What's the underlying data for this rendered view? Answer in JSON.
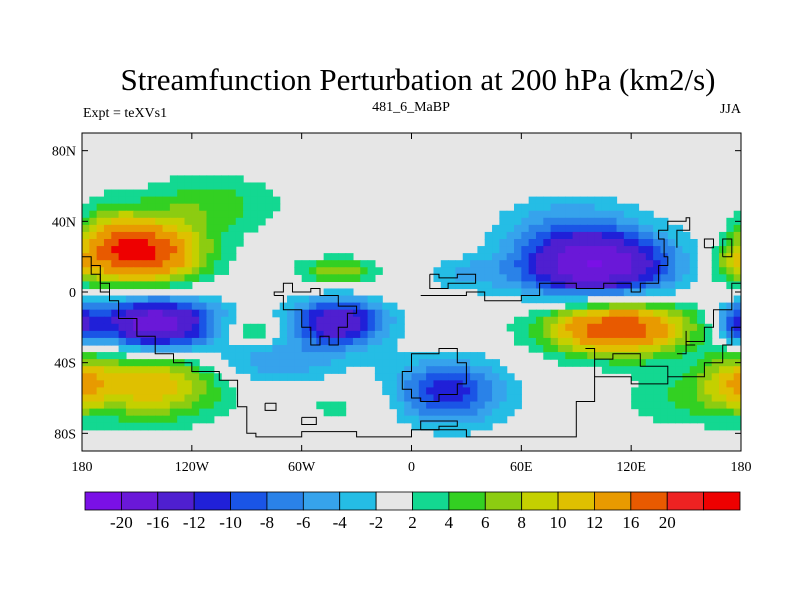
{
  "chart_data": {
    "type": "heatmap",
    "title": "Streamfunction Perturbation at 200 hPa (km2/s)",
    "left_label": "Expt = teXVs1",
    "center_label": "481_6_MaBP",
    "right_label": "JJA",
    "x_ticks": [
      "180",
      "120W",
      "60W",
      "0",
      "60E",
      "120E",
      "180"
    ],
    "y_ticks": [
      "80N",
      "40N",
      "0",
      "40S",
      "80S"
    ],
    "xlim": [
      -180,
      180
    ],
    "ylim": [
      -90,
      90
    ],
    "x_tick_values": [
      -180,
      -120,
      -60,
      0,
      60,
      120,
      180
    ],
    "y_tick_values": [
      80,
      40,
      0,
      -40,
      -80
    ],
    "colorbar_labels": [
      "-20",
      "-16",
      "-12",
      "-10",
      "-8",
      "-6",
      "-4",
      "-2",
      "2",
      "4",
      "6",
      "8",
      "10",
      "12",
      "16",
      "20"
    ],
    "colors": [
      "#7a10e6",
      "#6a18d8",
      "#4f1fd0",
      "#2020d8",
      "#1a55e6",
      "#2a82e8",
      "#36a3ec",
      "#25bde5",
      "#e6e6e6",
      "#13d891",
      "#33d022",
      "#8ccc11",
      "#c4d000",
      "#dfc000",
      "#e89a00",
      "#e85a00",
      "#ee2222",
      "#ee0000"
    ],
    "features": [
      {
        "lon": -145,
        "lat": 22,
        "value": 20,
        "spread_lon": 22,
        "spread_lat": 13
      },
      {
        "lon": -140,
        "lat": -18,
        "value": -20,
        "spread_lon": 23,
        "spread_lat": 11
      },
      {
        "lon": -140,
        "lat": -52,
        "value": 12,
        "spread_lon": 26,
        "spread_lat": 14
      },
      {
        "lon": -72,
        "lat": -40,
        "value": -6,
        "spread_lon": 28,
        "spread_lat": 10
      },
      {
        "lon": -86,
        "lat": -22,
        "value": 6,
        "spread_lon": 12,
        "spread_lat": 5
      },
      {
        "lon": -40,
        "lat": -17,
        "value": -16,
        "spread_lon": 18,
        "spread_lat": 9
      },
      {
        "lon": -40,
        "lat": 12,
        "value": 8,
        "spread_lon": 15,
        "spread_lat": 5
      },
      {
        "lon": 18,
        "lat": -57,
        "value": -12,
        "spread_lon": 23,
        "spread_lat": 13
      },
      {
        "lon": 30,
        "lat": 10,
        "value": -4,
        "spread_lon": 14,
        "spread_lat": 6
      },
      {
        "lon": 100,
        "lat": 15,
        "value": -20,
        "spread_lon": 30,
        "spread_lat": 14
      },
      {
        "lon": 112,
        "lat": -20,
        "value": 20,
        "spread_lon": 28,
        "spread_lat": 11
      },
      {
        "lon": -165,
        "lat": 30,
        "value": 6,
        "spread_lon": 12,
        "spread_lat": 14
      },
      {
        "lon": 175,
        "lat": 15,
        "value": 6,
        "spread_lon": 10,
        "spread_lat": 8
      },
      {
        "lon": 178,
        "lat": -18,
        "value": -10,
        "spread_lon": 8,
        "spread_lat": 8
      },
      {
        "lon": 178,
        "lat": -50,
        "value": 8,
        "spread_lon": 14,
        "spread_lat": 12
      },
      {
        "lon": 85,
        "lat": 40,
        "value": -4,
        "spread_lon": 25,
        "spread_lat": 12
      },
      {
        "lon": -110,
        "lat": 50,
        "value": 5,
        "spread_lon": 28,
        "spread_lat": 12
      },
      {
        "lon": -30,
        "lat": -62,
        "value": 3,
        "spread_lon": 30,
        "spread_lat": 12
      },
      {
        "lon": 150,
        "lat": -60,
        "value": 4,
        "spread_lon": 25,
        "spread_lat": 12
      }
    ]
  }
}
